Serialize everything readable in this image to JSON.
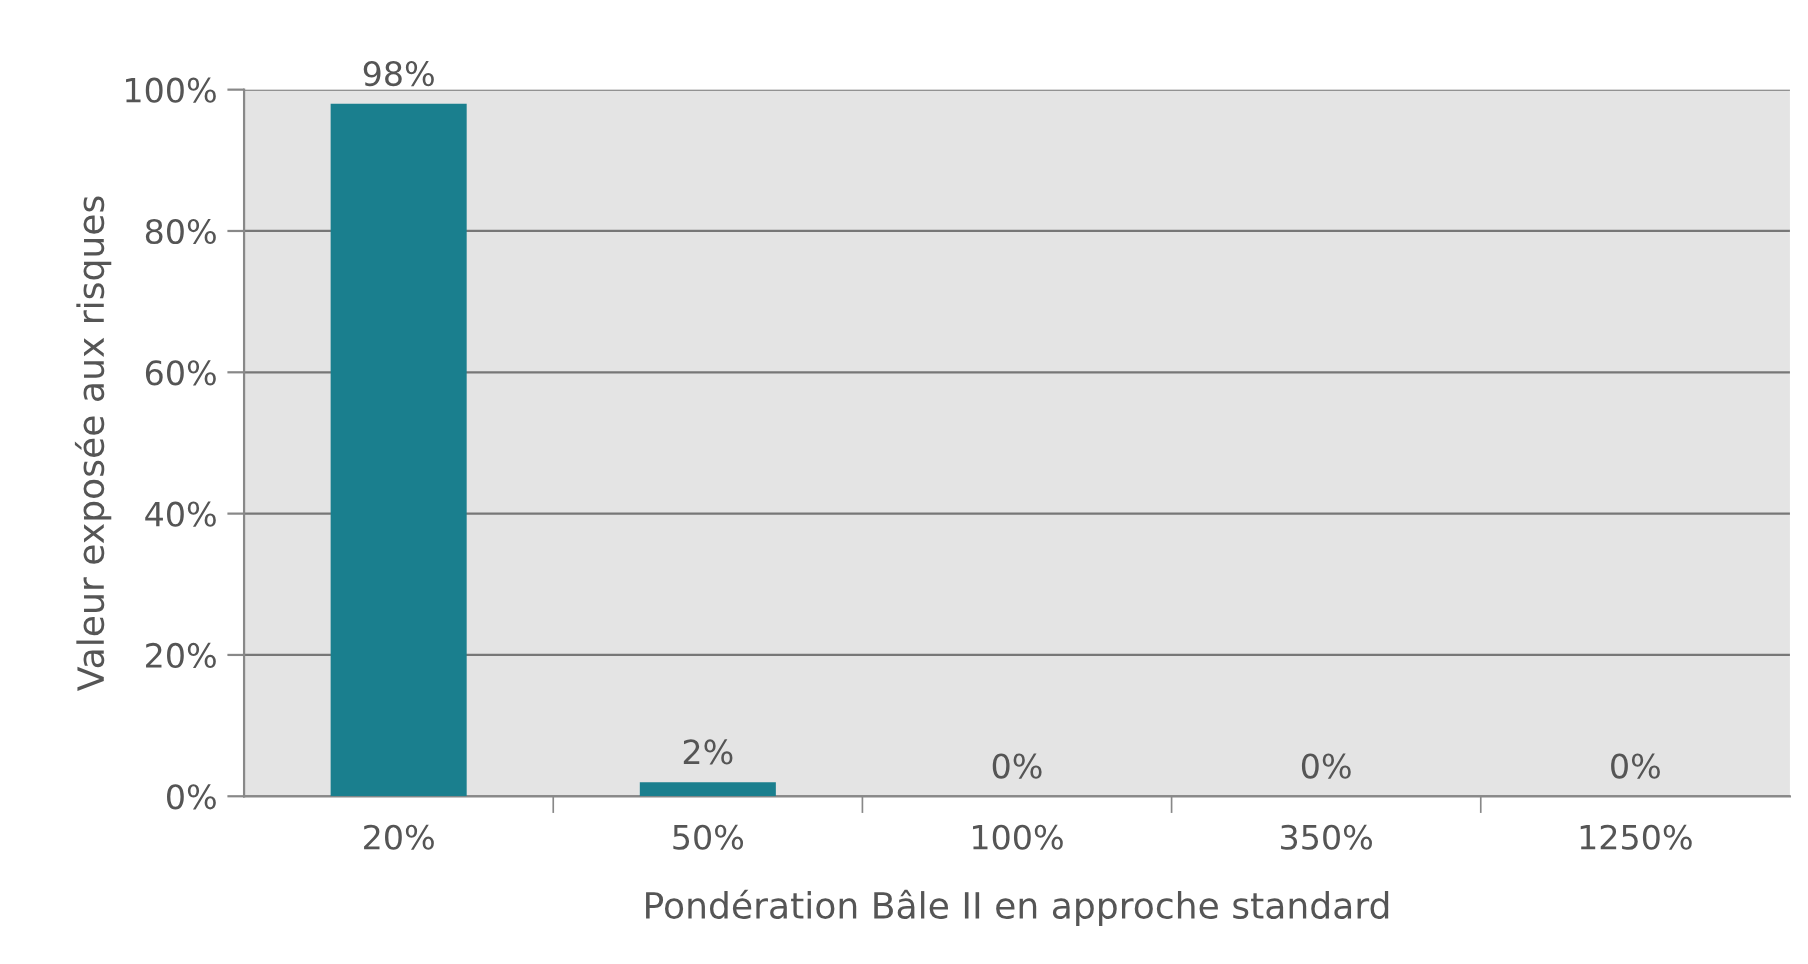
{
  "chart_data": {
    "type": "bar",
    "xlabel": "Pondération Bâle II en approche standard",
    "ylabel": "Valeur exposée aux risques",
    "categories": [
      "20%",
      "50%",
      "100%",
      "350%",
      "1250%"
    ],
    "values": [
      98,
      2,
      0,
      0,
      0
    ],
    "color": "#1a7f8e",
    "value_labels": [
      "98%",
      "2%",
      "0%",
      "0%",
      "0%"
    ],
    "ylim": [
      0,
      100
    ],
    "yticks": [
      {
        "value": 0,
        "label": "0%"
      },
      {
        "value": 20,
        "label": "20%"
      },
      {
        "value": 40,
        "label": "40%"
      },
      {
        "value": 60,
        "label": "60%"
      },
      {
        "value": 80,
        "label": "80%"
      },
      {
        "value": 100,
        "label": "100%"
      }
    ],
    "grid": "y"
  }
}
